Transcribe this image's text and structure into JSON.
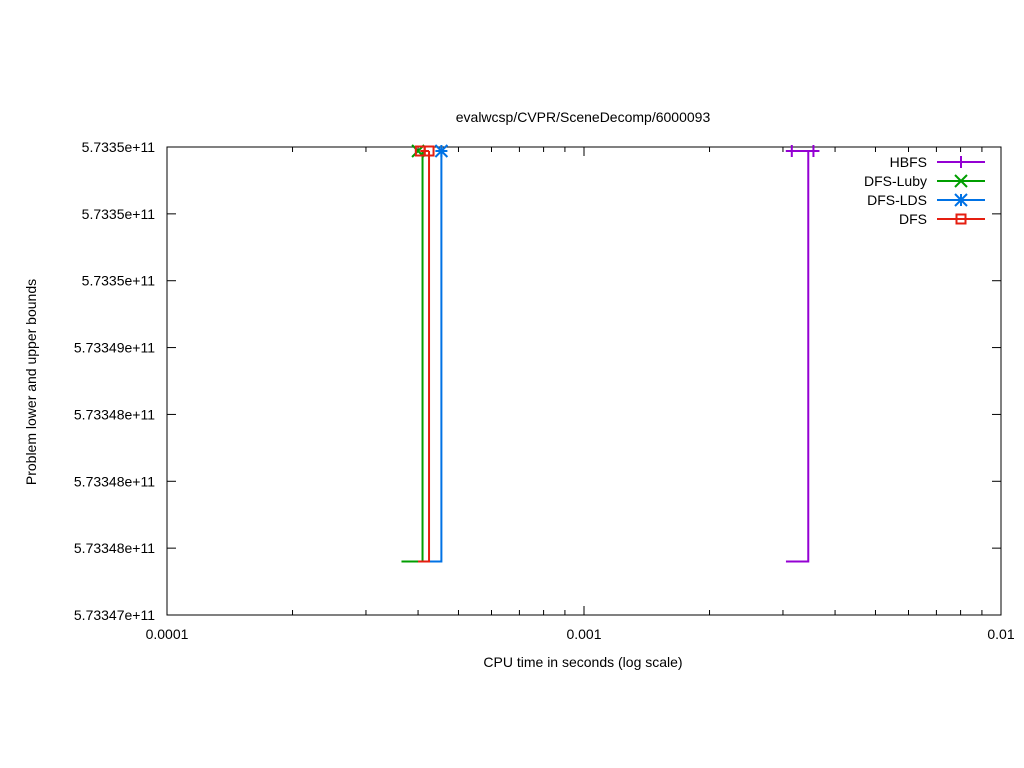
{
  "chart_data": {
    "type": "line",
    "title": "evalwcsp/CVPR/SceneDecomp/6000093",
    "xlabel": "CPU time in seconds (log scale)",
    "ylabel": "Problem lower and upper bounds",
    "x_scale": "log",
    "xlim": [
      0.0001,
      0.01
    ],
    "ylim": [
      573347000000,
      573350500000
    ],
    "x_ticks": [
      {
        "value": 0.0001,
        "label": "0.0001"
      },
      {
        "value": 0.001,
        "label": "0.001"
      },
      {
        "value": 0.01,
        "label": "0.01"
      }
    ],
    "y_ticks": [
      {
        "value": 573347000000,
        "label": "5.73347e+11"
      },
      {
        "value": 573347500000,
        "label": "5.73348e+11"
      },
      {
        "value": 573348000000,
        "label": "5.73348e+11"
      },
      {
        "value": 573348500000,
        "label": "5.73348e+11"
      },
      {
        "value": 573349000000,
        "label": "5.73349e+11"
      },
      {
        "value": 573349500000,
        "label": "5.7335e+11"
      },
      {
        "value": 573350000000,
        "label": "5.7335e+11"
      },
      {
        "value": 573350500000,
        "label": "5.7335e+11"
      }
    ],
    "grid": false,
    "legend_position": "top-right",
    "series": [
      {
        "name": "HBFS",
        "color": "#9400d3",
        "marker": "plus",
        "lower": [
          [
            0.00305,
            573347400000
          ],
          [
            0.00345,
            573347400000
          ],
          [
            0.00345,
            573350470000
          ]
        ],
        "upper": [
          [
            0.00315,
            573350470000
          ],
          [
            0.00355,
            573350470000
          ]
        ]
      },
      {
        "name": "DFS-Luby",
        "color": "#009e00",
        "marker": "cross",
        "lower": [
          [
            0.000365,
            573347400000
          ],
          [
            0.00041,
            573347400000
          ],
          [
            0.00041,
            573350470000
          ]
        ],
        "upper": [
          [
            0.0004,
            573350470000
          ]
        ]
      },
      {
        "name": "DFS-LDS",
        "color": "#0072e5",
        "marker": "star",
        "lower": [
          [
            0.000418,
            573347400000
          ],
          [
            0.000455,
            573347400000
          ],
          [
            0.000455,
            573350470000
          ]
        ],
        "upper": [
          [
            0.000455,
            573350470000
          ]
        ]
      },
      {
        "name": "DFS",
        "color": "#e51e10",
        "marker": "square",
        "lower": [
          [
            0.0004,
            573347400000
          ],
          [
            0.000425,
            573347400000
          ],
          [
            0.000425,
            573350470000
          ]
        ],
        "upper": [
          [
            0.000405,
            573350470000
          ],
          [
            0.000425,
            573350470000
          ]
        ]
      }
    ]
  }
}
